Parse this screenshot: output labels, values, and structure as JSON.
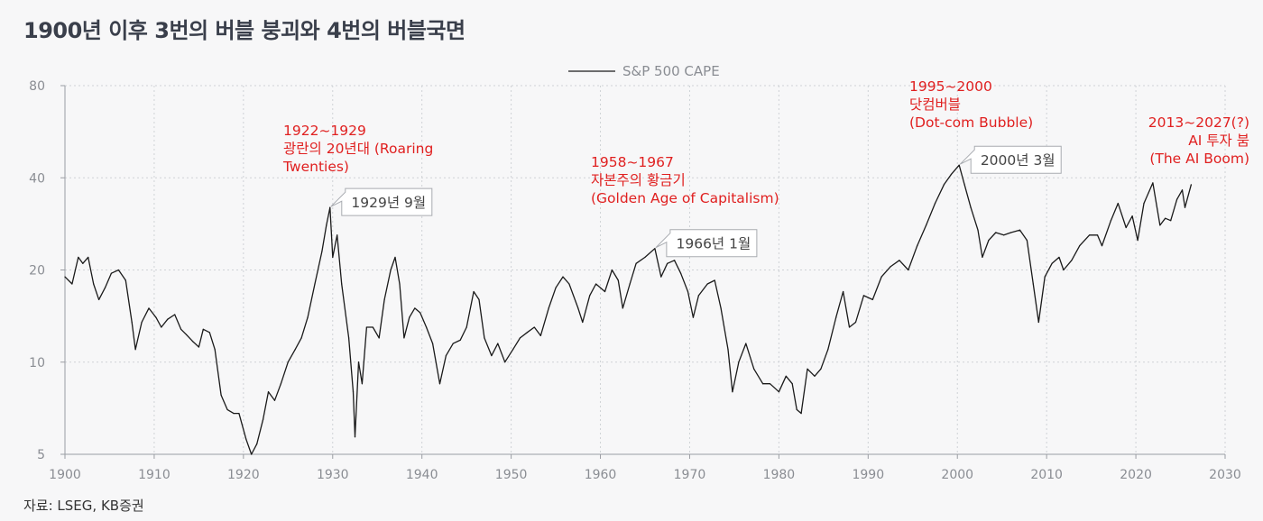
{
  "page": {
    "title": "1900년 이후 3번의 버블 붕괴와 4번의 버블국면",
    "source": "자료: LSEG, KB증권"
  },
  "chart_data": {
    "type": "line",
    "title": "1900년 이후 3번의 버블 붕괴와 4번의 버블국면",
    "ylabel": "",
    "xlabel": "",
    "y_scale": "log",
    "ylim": [
      5,
      80
    ],
    "xlim": [
      1900,
      2030
    ],
    "y_ticks": [
      5,
      10,
      20,
      40,
      80
    ],
    "x_ticks": [
      1900,
      1910,
      1920,
      1930,
      1940,
      1950,
      1960,
      1970,
      1980,
      1990,
      2000,
      2010,
      2020,
      2030
    ],
    "grid": true,
    "legend": {
      "placement": "top-center",
      "entries": [
        "S&P 500 CAPE"
      ]
    },
    "series": [
      {
        "name": "S&P 500 CAPE",
        "color": "#1a1a1a",
        "points": [
          [
            1900.0,
            19.0
          ],
          [
            1900.8,
            18.0
          ],
          [
            1901.5,
            22.0
          ],
          [
            1902.0,
            21.0
          ],
          [
            1902.6,
            22.0
          ],
          [
            1903.2,
            18.0
          ],
          [
            1903.8,
            16.0
          ],
          [
            1904.5,
            17.5
          ],
          [
            1905.2,
            19.5
          ],
          [
            1906.0,
            20.0
          ],
          [
            1906.8,
            18.5
          ],
          [
            1907.5,
            13.5
          ],
          [
            1907.9,
            11.0
          ],
          [
            1908.6,
            13.5
          ],
          [
            1909.4,
            15.0
          ],
          [
            1910.2,
            14.0
          ],
          [
            1910.8,
            13.0
          ],
          [
            1911.5,
            13.8
          ],
          [
            1912.3,
            14.3
          ],
          [
            1913.0,
            12.8
          ],
          [
            1913.6,
            12.3
          ],
          [
            1914.3,
            11.7
          ],
          [
            1915.0,
            11.2
          ],
          [
            1915.5,
            12.8
          ],
          [
            1916.2,
            12.5
          ],
          [
            1916.8,
            11.0
          ],
          [
            1917.5,
            7.8
          ],
          [
            1918.2,
            7.0
          ],
          [
            1918.9,
            6.8
          ],
          [
            1919.5,
            6.8
          ],
          [
            1920.3,
            5.6
          ],
          [
            1920.9,
            5.0
          ],
          [
            1921.5,
            5.4
          ],
          [
            1922.2,
            6.5
          ],
          [
            1922.8,
            8.0
          ],
          [
            1923.5,
            7.5
          ],
          [
            1924.2,
            8.5
          ],
          [
            1925.0,
            10.0
          ],
          [
            1925.8,
            11.0
          ],
          [
            1926.5,
            12.0
          ],
          [
            1927.2,
            14.0
          ],
          [
            1928.0,
            18.0
          ],
          [
            1928.8,
            23.0
          ],
          [
            1929.3,
            28.0
          ],
          [
            1929.7,
            32.0
          ],
          [
            1930.0,
            22.0
          ],
          [
            1930.5,
            26.0
          ],
          [
            1931.0,
            18.0
          ],
          [
            1931.8,
            12.0
          ],
          [
            1932.3,
            8.0
          ],
          [
            1932.5,
            5.7
          ],
          [
            1932.9,
            10.0
          ],
          [
            1933.3,
            8.5
          ],
          [
            1933.8,
            13.0
          ],
          [
            1934.5,
            13.0
          ],
          [
            1935.2,
            12.0
          ],
          [
            1935.8,
            16.0
          ],
          [
            1936.5,
            20.0
          ],
          [
            1937.0,
            22.0
          ],
          [
            1937.5,
            18.0
          ],
          [
            1938.0,
            12.0
          ],
          [
            1938.6,
            14.0
          ],
          [
            1939.2,
            15.0
          ],
          [
            1939.8,
            14.5
          ],
          [
            1940.5,
            13.0
          ],
          [
            1941.2,
            11.5
          ],
          [
            1942.0,
            8.5
          ],
          [
            1942.7,
            10.5
          ],
          [
            1943.5,
            11.5
          ],
          [
            1944.3,
            11.8
          ],
          [
            1945.0,
            13.0
          ],
          [
            1945.8,
            17.0
          ],
          [
            1946.4,
            16.0
          ],
          [
            1947.0,
            12.0
          ],
          [
            1947.8,
            10.5
          ],
          [
            1948.5,
            11.5
          ],
          [
            1949.3,
            10.0
          ],
          [
            1950.2,
            11.0
          ],
          [
            1951.0,
            12.0
          ],
          [
            1951.8,
            12.5
          ],
          [
            1952.6,
            13.0
          ],
          [
            1953.3,
            12.2
          ],
          [
            1954.2,
            15.0
          ],
          [
            1955.0,
            17.5
          ],
          [
            1955.8,
            19.0
          ],
          [
            1956.5,
            18.0
          ],
          [
            1957.5,
            15.0
          ],
          [
            1958.0,
            13.5
          ],
          [
            1958.8,
            16.5
          ],
          [
            1959.5,
            18.0
          ],
          [
            1960.5,
            17.0
          ],
          [
            1961.3,
            20.0
          ],
          [
            1962.0,
            18.5
          ],
          [
            1962.5,
            15.0
          ],
          [
            1963.3,
            18.0
          ],
          [
            1964.0,
            21.0
          ],
          [
            1965.0,
            22.0
          ],
          [
            1966.1,
            23.5
          ],
          [
            1966.8,
            19.0
          ],
          [
            1967.5,
            21.0
          ],
          [
            1968.3,
            21.5
          ],
          [
            1969.0,
            19.5
          ],
          [
            1969.8,
            17.0
          ],
          [
            1970.4,
            14.0
          ],
          [
            1971.0,
            16.5
          ],
          [
            1972.0,
            18.0
          ],
          [
            1972.8,
            18.5
          ],
          [
            1973.5,
            15.0
          ],
          [
            1974.3,
            11.0
          ],
          [
            1974.8,
            8.0
          ],
          [
            1975.5,
            10.0
          ],
          [
            1976.3,
            11.5
          ],
          [
            1977.2,
            9.5
          ],
          [
            1978.2,
            8.5
          ],
          [
            1979.0,
            8.5
          ],
          [
            1980.0,
            8.0
          ],
          [
            1980.8,
            9.0
          ],
          [
            1981.5,
            8.5
          ],
          [
            1982.0,
            7.0
          ],
          [
            1982.5,
            6.8
          ],
          [
            1983.2,
            9.5
          ],
          [
            1984.0,
            9.0
          ],
          [
            1984.7,
            9.5
          ],
          [
            1985.5,
            11.0
          ],
          [
            1986.4,
            14.0
          ],
          [
            1987.2,
            17.0
          ],
          [
            1987.9,
            13.0
          ],
          [
            1988.6,
            13.5
          ],
          [
            1989.5,
            16.5
          ],
          [
            1990.5,
            16.0
          ],
          [
            1991.5,
            19.0
          ],
          [
            1992.5,
            20.5
          ],
          [
            1993.5,
            21.5
          ],
          [
            1994.5,
            20.0
          ],
          [
            1995.5,
            24.0
          ],
          [
            1996.5,
            28.0
          ],
          [
            1997.5,
            33.0
          ],
          [
            1998.5,
            38.0
          ],
          [
            1999.3,
            41.0
          ],
          [
            2000.2,
            44.0
          ],
          [
            2000.8,
            38.0
          ],
          [
            2001.5,
            32.0
          ],
          [
            2002.3,
            27.0
          ],
          [
            2002.8,
            22.0
          ],
          [
            2003.5,
            25.0
          ],
          [
            2004.3,
            26.5
          ],
          [
            2005.2,
            26.0
          ],
          [
            2006.0,
            26.5
          ],
          [
            2007.0,
            27.0
          ],
          [
            2007.8,
            25.0
          ],
          [
            2008.5,
            18.0
          ],
          [
            2009.1,
            13.5
          ],
          [
            2009.8,
            19.0
          ],
          [
            2010.6,
            21.0
          ],
          [
            2011.4,
            22.0
          ],
          [
            2011.9,
            20.0
          ],
          [
            2012.8,
            21.5
          ],
          [
            2013.7,
            24.0
          ],
          [
            2014.8,
            26.0
          ],
          [
            2015.7,
            26.0
          ],
          [
            2016.2,
            24.0
          ],
          [
            2017.2,
            29.0
          ],
          [
            2018.0,
            33.0
          ],
          [
            2018.9,
            27.5
          ],
          [
            2019.6,
            30.0
          ],
          [
            2020.2,
            25.0
          ],
          [
            2020.9,
            33.0
          ],
          [
            2021.9,
            38.5
          ],
          [
            2022.7,
            28.0
          ],
          [
            2023.3,
            29.5
          ],
          [
            2023.9,
            29.0
          ],
          [
            2024.6,
            34.0
          ],
          [
            2025.2,
            36.5
          ],
          [
            2025.5,
            32.0
          ],
          [
            2026.2,
            38.0
          ]
        ]
      }
    ],
    "annotations": [
      {
        "label": "1922~1929\n광란의 20년대 (Roaring\nTwenties)",
        "color": "#e02020"
      },
      {
        "label": "1958~1967\n자본주의 황금기\n(Golden Age of Capitalism)",
        "color": "#e02020"
      },
      {
        "label": "1995~2000\n닷컴버블\n(Dot-com Bubble)",
        "color": "#e02020"
      },
      {
        "label": "2013~2027(?)\nAI 투자 붐\n(The AI Boom)",
        "color": "#e02020"
      }
    ],
    "callouts": [
      {
        "label": "1929년 9월",
        "x": 1929.7,
        "y": 32.0
      },
      {
        "label": "1966년 1월",
        "x": 1966.1,
        "y": 23.5
      },
      {
        "label": "2000년 3월",
        "x": 2000.2,
        "y": 44.0
      }
    ]
  }
}
